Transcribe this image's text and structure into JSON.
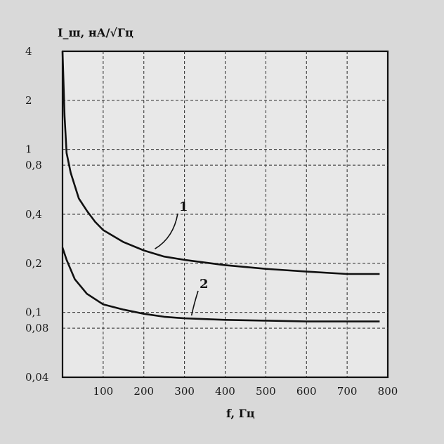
{
  "chart_data": {
    "type": "line",
    "ylabel": "I_ш, нА/√Гц",
    "xlabel": "f, Гц",
    "x_ticks": [
      100,
      200,
      300,
      400,
      500,
      600,
      700,
      800
    ],
    "x_tick_labels": [
      "100",
      "200",
      "300",
      "400",
      "500",
      "600",
      "700",
      "800"
    ],
    "y_ticks": [
      4,
      2,
      1,
      0.8,
      0.4,
      0.2,
      0.1,
      0.08,
      0.04
    ],
    "y_tick_labels": [
      "4",
      "2",
      "1",
      "0,8",
      "0,4",
      "0,2",
      "0,1",
      "0,08",
      "0,04"
    ],
    "xlim": [
      0,
      800
    ],
    "ylim": [
      0.04,
      4
    ],
    "y_scale": "log",
    "grid": true,
    "series": [
      {
        "name": "1",
        "x": [
          0,
          5,
          10,
          20,
          40,
          60,
          80,
          100,
          150,
          200,
          250,
          300,
          400,
          500,
          600,
          700,
          780
        ],
        "y": [
          4,
          1.6,
          0.95,
          0.72,
          0.5,
          0.42,
          0.36,
          0.32,
          0.27,
          0.24,
          0.22,
          0.21,
          0.195,
          0.185,
          0.178,
          0.172,
          0.172
        ]
      },
      {
        "name": "2",
        "x": [
          0,
          10,
          30,
          60,
          100,
          150,
          200,
          250,
          300,
          400,
          500,
          600,
          700,
          780
        ],
        "y": [
          0.25,
          0.21,
          0.16,
          0.13,
          0.112,
          0.104,
          0.098,
          0.094,
          0.092,
          0.09,
          0.089,
          0.088,
          0.088,
          0.088
        ]
      }
    ]
  }
}
